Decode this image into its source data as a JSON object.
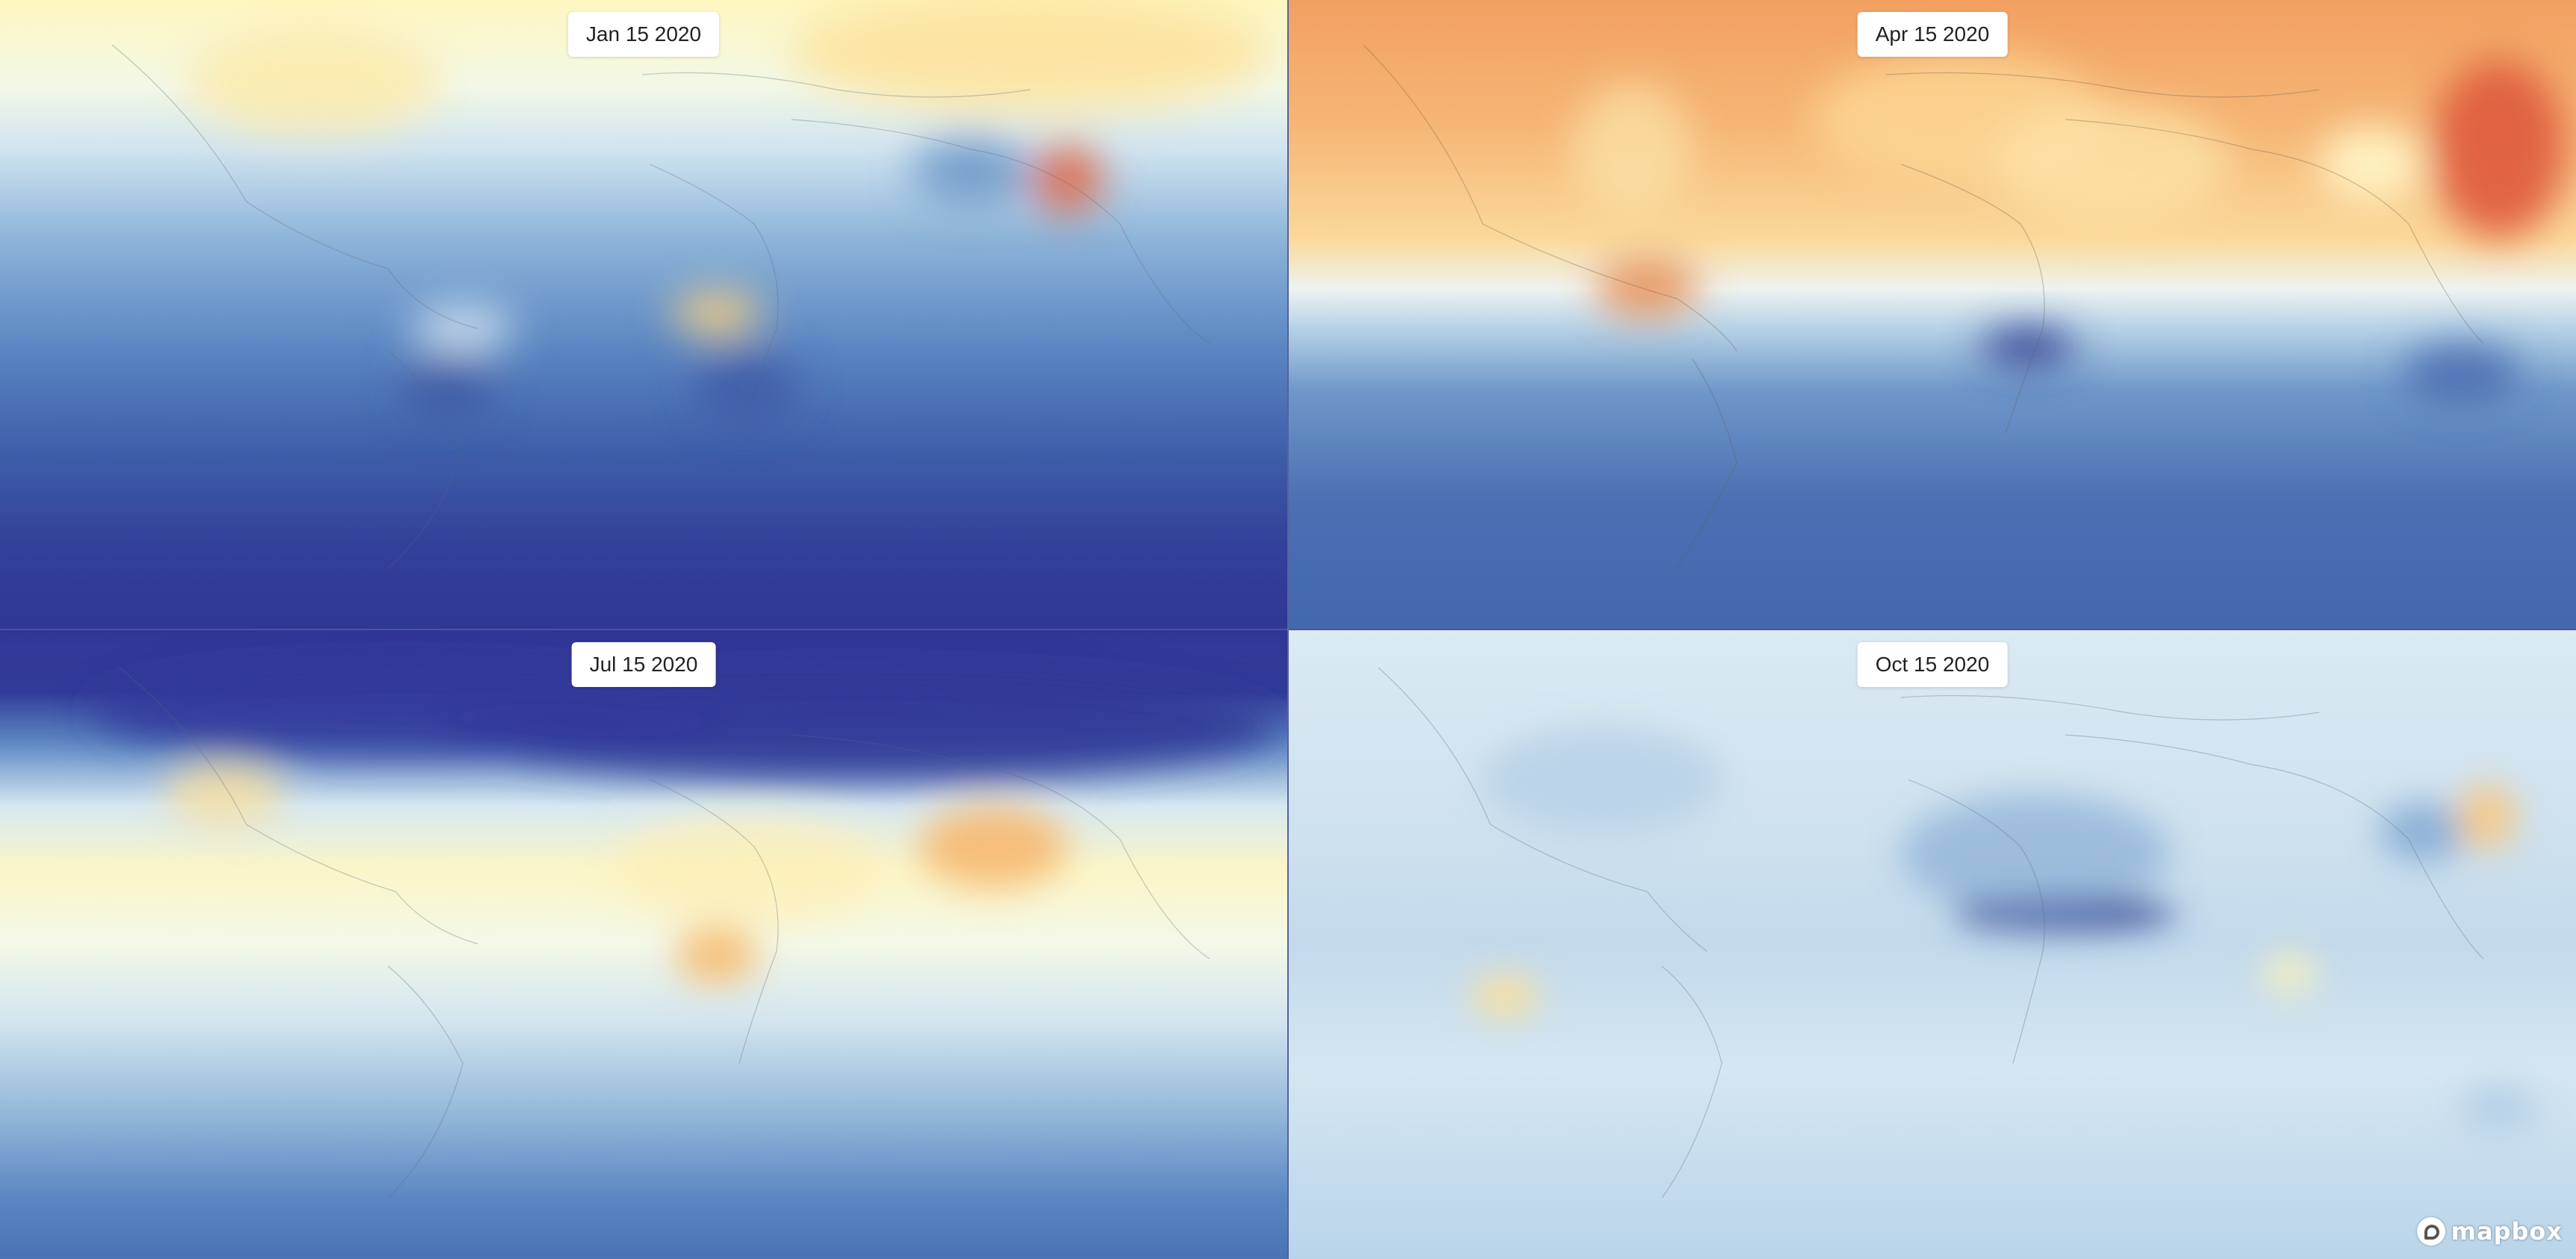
{
  "map": {
    "panels": [
      {
        "date_label": "Jan 15 2020"
      },
      {
        "date_label": "Apr 15 2020"
      },
      {
        "date_label": "Jul 15 2020"
      },
      {
        "date_label": "Oct 15 2020"
      }
    ],
    "attribution": {
      "logo_text": "mapbox",
      "logo_icon": "mapbox-logo-icon"
    },
    "colors": {
      "low": "#313695",
      "mid_low": "#4575b4",
      "pale_blue": "#e0f3f8",
      "neutral": "#ffffbf",
      "mid_high": "#fdae61",
      "high": "#d73027"
    }
  }
}
